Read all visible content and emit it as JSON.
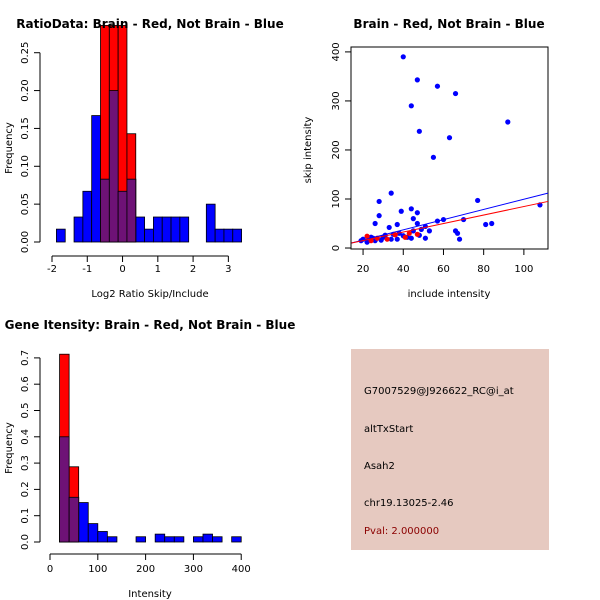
{
  "colors": {
    "red": "#ff0000",
    "blue": "#0000ff",
    "overlap": "#6e1276",
    "panel": "#e6c9c0",
    "pval": "#8b0000"
  },
  "chart_data": [
    {
      "id": "ratio-hist",
      "type": "histogram",
      "title": "RatioData: Brain - Red, Not Brain - Blue",
      "xlabel": "Log2 Ratio Skip/Include",
      "ylabel": "Frequency",
      "xlim": [
        -2,
        3.5
      ],
      "ylim": [
        0,
        0.28
      ],
      "x_ticks": [
        -2,
        -1,
        0,
        1,
        2,
        3
      ],
      "y_ticks": [
        0.0,
        0.05,
        0.1,
        0.15,
        0.2,
        0.25
      ],
      "x_tick_labels": [
        "-2",
        "-1",
        "0",
        "1",
        "2",
        "3"
      ],
      "y_tick_labels": [
        "0.00",
        "0.05",
        "0.10",
        "0.15",
        "0.20",
        "0.25"
      ],
      "bin_width": 0.25,
      "series": [
        {
          "name": "Not Brain",
          "color": "blue",
          "bins": [
            {
              "x0": -1.875,
              "value": 0.017
            },
            {
              "x0": -1.375,
              "value": 0.033
            },
            {
              "x0": -1.125,
              "value": 0.067
            },
            {
              "x0": -0.875,
              "value": 0.167
            },
            {
              "x0": -0.625,
              "value": 0.083
            },
            {
              "x0": -0.375,
              "value": 0.2
            },
            {
              "x0": -0.125,
              "value": 0.067
            },
            {
              "x0": 0.125,
              "value": 0.083
            },
            {
              "x0": 0.375,
              "value": 0.033
            },
            {
              "x0": 0.625,
              "value": 0.017
            },
            {
              "x0": 0.875,
              "value": 0.033
            },
            {
              "x0": 1.125,
              "value": 0.033
            },
            {
              "x0": 1.375,
              "value": 0.033
            },
            {
              "x0": 1.625,
              "value": 0.033
            },
            {
              "x0": 2.375,
              "value": 0.05
            },
            {
              "x0": 2.625,
              "value": 0.017
            },
            {
              "x0": 2.875,
              "value": 0.017
            },
            {
              "x0": 3.125,
              "value": 0.017
            }
          ]
        },
        {
          "name": "Brain",
          "color": "red",
          "bins": [
            {
              "x0": -0.625,
              "value": 0.286
            },
            {
              "x0": -0.375,
              "value": 0.286
            },
            {
              "x0": -0.125,
              "value": 0.286
            },
            {
              "x0": 0.125,
              "value": 0.143
            }
          ]
        }
      ]
    },
    {
      "id": "scatter",
      "type": "scatter",
      "title": "Brain - Red, Not Brain - Blue",
      "xlabel": "include intensity",
      "ylabel": "skip intensity",
      "xlim": [
        14,
        112
      ],
      "ylim": [
        -2,
        410
      ],
      "x_ticks": [
        20,
        40,
        60,
        80,
        100
      ],
      "y_ticks": [
        0,
        100,
        200,
        300,
        400
      ],
      "x_tick_labels": [
        "20",
        "40",
        "60",
        "80",
        "100"
      ],
      "y_tick_labels": [
        "0",
        "100",
        "200",
        "300",
        "400"
      ],
      "series": [
        {
          "name": "Not Brain",
          "color": "blue",
          "points": [
            [
              40,
              390
            ],
            [
              47,
              343
            ],
            [
              57,
              330
            ],
            [
              66,
              315
            ],
            [
              44,
              290
            ],
            [
              92,
              257
            ],
            [
              48,
              238
            ],
            [
              63,
              225
            ],
            [
              55,
              185
            ],
            [
              34,
              112
            ],
            [
              77,
              97
            ],
            [
              28,
              95
            ],
            [
              108,
              88
            ],
            [
              44,
              80
            ],
            [
              39,
              75
            ],
            [
              47,
              72
            ],
            [
              28,
              66
            ],
            [
              60,
              58
            ],
            [
              45,
              60
            ],
            [
              57,
              55
            ],
            [
              70,
              58
            ],
            [
              47,
              50
            ],
            [
              26,
              50
            ],
            [
              37,
              48
            ],
            [
              81,
              48
            ],
            [
              84,
              50
            ],
            [
              33,
              42
            ],
            [
              51,
              44
            ],
            [
              49,
              38
            ],
            [
              45,
              35
            ],
            [
              53,
              35
            ],
            [
              66,
              35
            ],
            [
              67,
              30
            ],
            [
              35,
              28
            ],
            [
              40,
              25
            ],
            [
              42,
              22
            ],
            [
              30,
              22
            ],
            [
              44,
              20
            ],
            [
              51,
              20
            ],
            [
              68,
              18
            ],
            [
              26,
              15
            ],
            [
              22,
              12
            ],
            [
              19,
              15
            ],
            [
              34,
              18
            ],
            [
              37,
              18
            ],
            [
              29,
              16
            ],
            [
              25,
              20
            ],
            [
              20,
              18
            ],
            [
              31,
              26
            ],
            [
              24,
              22
            ],
            [
              48,
              26
            ],
            [
              38,
              30
            ]
          ],
          "fit_line": [
            [
              14,
              10
            ],
            [
              112,
              112
            ]
          ]
        },
        {
          "name": "Brain",
          "color": "red",
          "points": [
            [
              22,
              24
            ],
            [
              27,
              20
            ],
            [
              36,
              27
            ],
            [
              41,
              22
            ],
            [
              43,
              30
            ],
            [
              47,
              28
            ],
            [
              24,
              15
            ],
            [
              32,
              18
            ]
          ],
          "fit_line": [
            [
              14,
              10
            ],
            [
              112,
              95
            ]
          ]
        }
      ]
    },
    {
      "id": "intensity-hist",
      "type": "histogram",
      "title": "Gene Itensity: Brain - Red, Not Brain - Blue",
      "xlabel": "Intensity",
      "ylabel": "Frequency",
      "xlim": [
        0,
        410
      ],
      "ylim": [
        0,
        0.73
      ],
      "x_ticks": [
        0,
        100,
        200,
        300,
        400
      ],
      "y_ticks": [
        0.0,
        0.1,
        0.2,
        0.3,
        0.4,
        0.5,
        0.6,
        0.7
      ],
      "x_tick_labels": [
        "0",
        "100",
        "200",
        "300",
        "400"
      ],
      "y_tick_labels": [
        "0.0",
        "0.1",
        "0.2",
        "0.3",
        "0.4",
        "0.5",
        "0.6",
        "0.7"
      ],
      "bin_width": 20,
      "series": [
        {
          "name": "Not Brain",
          "color": "blue",
          "bins": [
            {
              "x0": 20,
              "value": 0.4
            },
            {
              "x0": 40,
              "value": 0.17
            },
            {
              "x0": 60,
              "value": 0.15
            },
            {
              "x0": 80,
              "value": 0.07
            },
            {
              "x0": 100,
              "value": 0.04
            },
            {
              "x0": 120,
              "value": 0.02
            },
            {
              "x0": 180,
              "value": 0.02
            },
            {
              "x0": 220,
              "value": 0.03
            },
            {
              "x0": 240,
              "value": 0.02
            },
            {
              "x0": 260,
              "value": 0.02
            },
            {
              "x0": 300,
              "value": 0.02
            },
            {
              "x0": 320,
              "value": 0.03
            },
            {
              "x0": 340,
              "value": 0.02
            },
            {
              "x0": 380,
              "value": 0.02
            }
          ]
        },
        {
          "name": "Brain",
          "color": "red",
          "bins": [
            {
              "x0": 20,
              "value": 0.714
            },
            {
              "x0": 40,
              "value": 0.286
            }
          ]
        }
      ]
    }
  ],
  "info": {
    "gene_id": "G7007529@J926622_RC@i_at",
    "event_type": "altTxStart",
    "gene_name": "Asah2",
    "location": "chr19.13025-2.46",
    "pval": "Pval: 2.000000"
  }
}
